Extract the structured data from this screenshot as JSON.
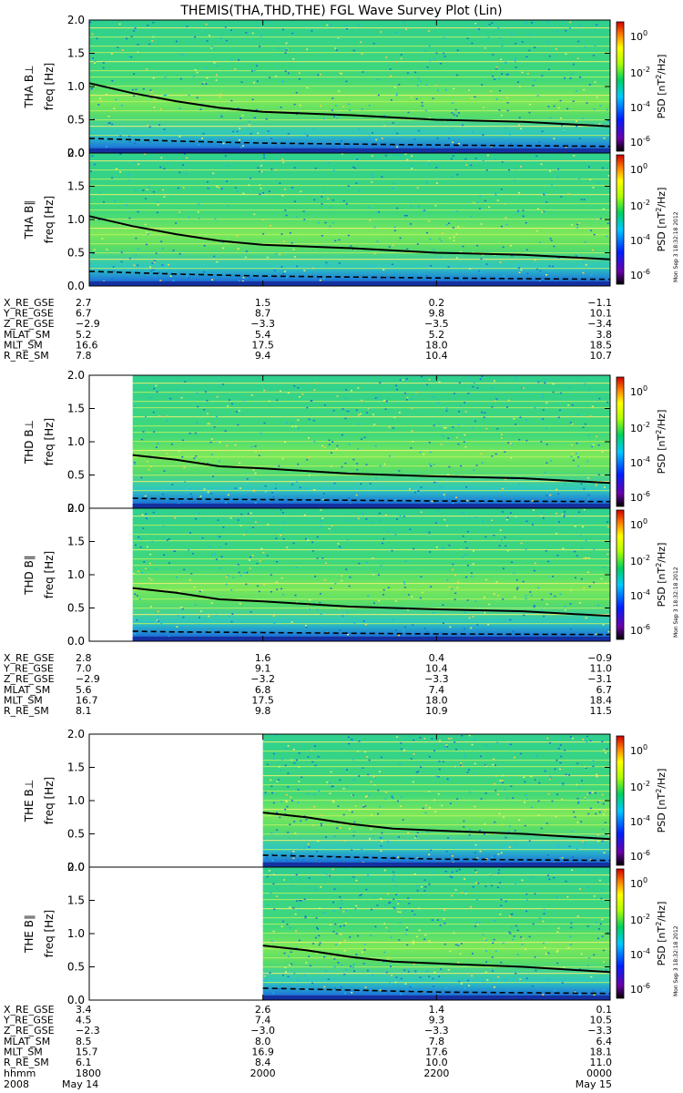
{
  "title": "THEMIS(THA,THD,THE) FGL Wave Survey Plot (Lin)",
  "colorbar": {
    "label_prefix": "PSD [nT",
    "label_sup": "2",
    "label_suffix": "/Hz]",
    "ticks": [
      {
        "base": "10",
        "exp": "0"
      },
      {
        "base": "10",
        "exp": "-2"
      },
      {
        "base": "10",
        "exp": "-4"
      },
      {
        "base": "10",
        "exp": "-6"
      }
    ],
    "stamp": "Mon Sep  3 18:32:18 2012"
  },
  "y_tick_labels": [
    "2.0",
    "1.5",
    "1.0",
    "0.5",
    "0.0"
  ],
  "ylabel_unit": "freq [Hz]",
  "time_axis": {
    "row_label": "hhmm",
    "ticks": [
      "1800",
      "2000",
      "2200",
      "0000"
    ],
    "year": "2008",
    "date_start": "May 14",
    "date_end": "May 15"
  },
  "ephemeris_labels": [
    "X_RE_GSE",
    "Y_RE_GSE",
    "Z_RE_GSE",
    "MLAT_SM",
    "MLT_SM",
    "R_RE_SM"
  ],
  "chart_data": [
    {
      "type": "heatmap",
      "probe": "THA",
      "panels": [
        {
          "ylabel": "THA B⊥",
          "ylim": [
            0,
            2
          ],
          "data_start_hhmm": "1800",
          "solid_line": {
            "x_hhmm": [
              "1800",
              "1830",
              "1900",
              "1930",
              "2000",
              "2100",
              "2200",
              "2300",
              "0000"
            ],
            "y_hz": [
              1.05,
              0.9,
              0.78,
              0.68,
              0.62,
              0.57,
              0.5,
              0.47,
              0.4
            ]
          },
          "dashed_line": {
            "x_hhmm": [
              "1800",
              "1900",
              "2000",
              "2200",
              "0000"
            ],
            "y_hz": [
              0.22,
              0.18,
              0.15,
              0.12,
              0.1
            ]
          }
        },
        {
          "ylabel": "THA B∥",
          "ylim": [
            0,
            2
          ],
          "data_start_hhmm": "1800",
          "solid_line": {
            "x_hhmm": [
              "1800",
              "1830",
              "1900",
              "1930",
              "2000",
              "2100",
              "2200",
              "2300",
              "0000"
            ],
            "y_hz": [
              1.05,
              0.9,
              0.78,
              0.68,
              0.62,
              0.57,
              0.5,
              0.47,
              0.4
            ]
          },
          "dashed_line": {
            "x_hhmm": [
              "1800",
              "1900",
              "2000",
              "2200",
              "0000"
            ],
            "y_hz": [
              0.22,
              0.18,
              0.15,
              0.12,
              0.1
            ]
          }
        }
      ],
      "ephemeris": [
        [
          "2.7",
          "1.5",
          "0.2",
          "-1.1"
        ],
        [
          "6.7",
          "8.7",
          "9.8",
          "10.1"
        ],
        [
          "-2.9",
          "-3.3",
          "-3.5",
          "-3.4"
        ],
        [
          "5.2",
          "5.4",
          "5.2",
          "3.8"
        ],
        [
          "16.6",
          "17.5",
          "18.0",
          "18.5"
        ],
        [
          "7.8",
          "9.4",
          "10.4",
          "10.7"
        ]
      ]
    },
    {
      "type": "heatmap",
      "probe": "THD",
      "panels": [
        {
          "ylabel": "THD B⊥",
          "ylim": [
            0,
            2
          ],
          "data_start_hhmm": "1830",
          "solid_line": {
            "x_hhmm": [
              "1830",
              "1900",
              "1930",
              "2000",
              "2100",
              "2200",
              "2300",
              "0000"
            ],
            "y_hz": [
              0.8,
              0.73,
              0.63,
              0.6,
              0.52,
              0.48,
              0.45,
              0.38
            ]
          },
          "dashed_line": {
            "x_hhmm": [
              "1830",
              "1900",
              "2000",
              "2200",
              "0000"
            ],
            "y_hz": [
              0.15,
              0.14,
              0.13,
              0.11,
              0.1
            ]
          }
        },
        {
          "ylabel": "THD B∥",
          "ylim": [
            0,
            2
          ],
          "data_start_hhmm": "1830",
          "solid_line": {
            "x_hhmm": [
              "1830",
              "1900",
              "1930",
              "2000",
              "2100",
              "2200",
              "2300",
              "0000"
            ],
            "y_hz": [
              0.8,
              0.73,
              0.63,
              0.6,
              0.52,
              0.48,
              0.45,
              0.38
            ]
          },
          "dashed_line": {
            "x_hhmm": [
              "1830",
              "1900",
              "2000",
              "2200",
              "0000"
            ],
            "y_hz": [
              0.15,
              0.14,
              0.13,
              0.11,
              0.1
            ]
          }
        }
      ],
      "ephemeris": [
        [
          "2.8",
          "1.6",
          "0.4",
          "-0.9"
        ],
        [
          "7.0",
          "9.1",
          "10.4",
          "11.0"
        ],
        [
          "-2.9",
          "-3.2",
          "-3.3",
          "-3.1"
        ],
        [
          "5.6",
          "6.8",
          "7.4",
          "6.7"
        ],
        [
          "16.7",
          "17.5",
          "18.0",
          "18.4"
        ],
        [
          "8.1",
          "9.8",
          "10.9",
          "11.5"
        ]
      ]
    },
    {
      "type": "heatmap",
      "probe": "THE",
      "panels": [
        {
          "ylabel": "THE B⊥",
          "ylim": [
            0,
            2
          ],
          "data_start_hhmm": "2000",
          "solid_line": {
            "x_hhmm": [
              "2000",
              "2030",
              "2100",
              "2130",
              "2200",
              "2300",
              "0000"
            ],
            "y_hz": [
              0.82,
              0.75,
              0.65,
              0.58,
              0.55,
              0.5,
              0.42
            ]
          },
          "dashed_line": {
            "x_hhmm": [
              "2000",
              "2100",
              "2200",
              "0000"
            ],
            "y_hz": [
              0.18,
              0.15,
              0.12,
              0.1
            ]
          }
        },
        {
          "ylabel": "THE B∥",
          "ylim": [
            0,
            2
          ],
          "data_start_hhmm": "2000",
          "solid_line": {
            "x_hhmm": [
              "2000",
              "2030",
              "2100",
              "2130",
              "2200",
              "2300",
              "0000"
            ],
            "y_hz": [
              0.82,
              0.75,
              0.65,
              0.58,
              0.55,
              0.5,
              0.42
            ]
          },
          "dashed_line": {
            "x_hhmm": [
              "2000",
              "2100",
              "2200",
              "0000"
            ],
            "y_hz": [
              0.18,
              0.15,
              0.12,
              0.1
            ]
          }
        }
      ],
      "ephemeris": [
        [
          "3.4",
          "2.6",
          "1.4",
          "0.1"
        ],
        [
          "4.5",
          "7.4",
          "9.3",
          "10.5"
        ],
        [
          "-2.3",
          "-3.0",
          "-3.3",
          "-3.3"
        ],
        [
          "8.5",
          "8.0",
          "7.8",
          "6.4"
        ],
        [
          "15.7",
          "16.9",
          "17.6",
          "18.1"
        ],
        [
          "6.1",
          "8.4",
          "10.0",
          "11.0"
        ]
      ]
    }
  ]
}
